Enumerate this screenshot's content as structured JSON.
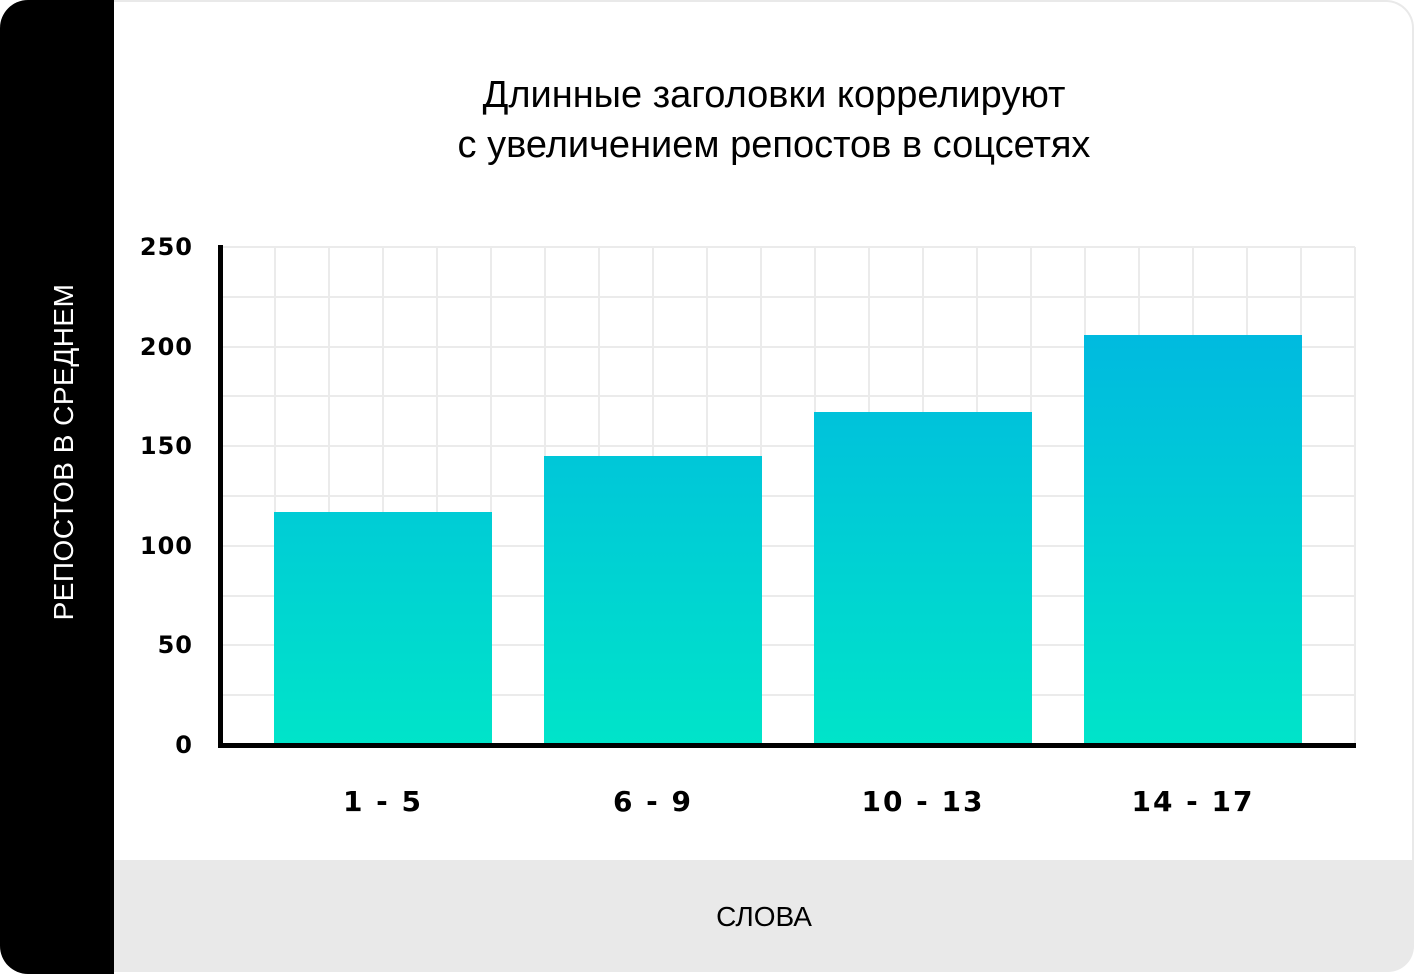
{
  "chart_data": {
    "type": "bar",
    "title": "Длинные заголовки коррелируют с увеличением репостов в соцсетях",
    "title_lines": [
      "Длинные заголовки коррелируют",
      "с увеличением репостов в соцсетях"
    ],
    "xlabel": "СЛОВА",
    "ylabel": "РЕПОСТОВ В СРЕДНЕМ",
    "categories": [
      "1-5",
      "6-9",
      "10-13",
      "14-17"
    ],
    "values": [
      117,
      145,
      167,
      206
    ],
    "ylim": [
      0,
      250
    ],
    "yticks": [
      0,
      50,
      100,
      150,
      200,
      250
    ],
    "grid": true,
    "legend": null,
    "colors": {
      "bar_top": "#00B1E4",
      "bar_bottom": "#00E4C9",
      "grid": "#EBEBEB",
      "axis": "#000000"
    }
  },
  "header": {
    "title_line1": "Длинные заголовки коррелируют",
    "title_line2": "с увеличением репостов в соцсетях"
  },
  "axes": {
    "y_label": "РЕПОСТОВ В СРЕДНЕМ",
    "x_label": "СЛОВА",
    "y_ticks": [
      "0",
      "50",
      "100",
      "150",
      "200",
      "250"
    ],
    "x_ticks": [
      "1 - 5",
      "6 - 9",
      "10 - 13",
      "14 - 17"
    ]
  }
}
